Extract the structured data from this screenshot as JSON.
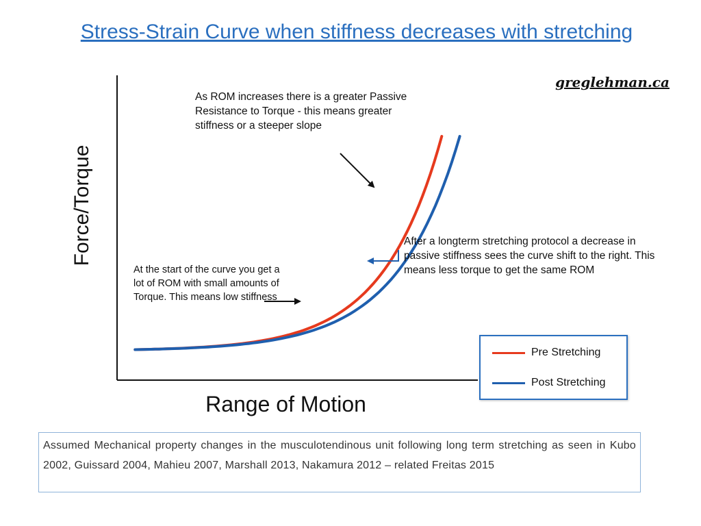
{
  "title": "Stress-Strain Curve when stiffness decreases with stretching",
  "watermark": "greglehman.ca",
  "colors": {
    "pre": "#e63a1e",
    "post": "#1f5fae",
    "title": "#2a6fbf",
    "axis": "#111111"
  },
  "chart_data": {
    "type": "line",
    "xlabel": "Range of Motion",
    "ylabel": "Force/Torque",
    "ticks": false,
    "grid": false,
    "legend_position": "bottom-right",
    "series": [
      {
        "name": "Pre Stretching",
        "color": "#e63a1e",
        "start": [
          0.05,
          0.1
        ],
        "end": [
          0.9,
          0.8
        ],
        "shape": "exponential-increasing"
      },
      {
        "name": "Post Stretching",
        "color": "#1f5fae",
        "start": [
          0.05,
          0.1
        ],
        "end": [
          0.95,
          0.8
        ],
        "shape": "exponential-increasing"
      }
    ]
  },
  "annotations": {
    "top": "As ROM increases there is a greater Passive Resistance to Torque - this means greater stiffness or a steeper slope",
    "left": "At the start of the curve you get a lot of ROM with small amounts of Torque.  This means low stiffness",
    "right": "After a longterm stretching protocol a decrease in passive stiffness sees the curve shift to the right. This means less torque to get the same ROM"
  },
  "legend": {
    "pre": "Pre Stretching",
    "post": "Post Stretching"
  },
  "footer": "Assumed Mechanical property changes in the musculotendinous unit following long term stretching as seen in Kubo 2002, Guissard 2004, Mahieu 2007, Marshall 2013, Nakamura 2012 – related Freitas 2015"
}
